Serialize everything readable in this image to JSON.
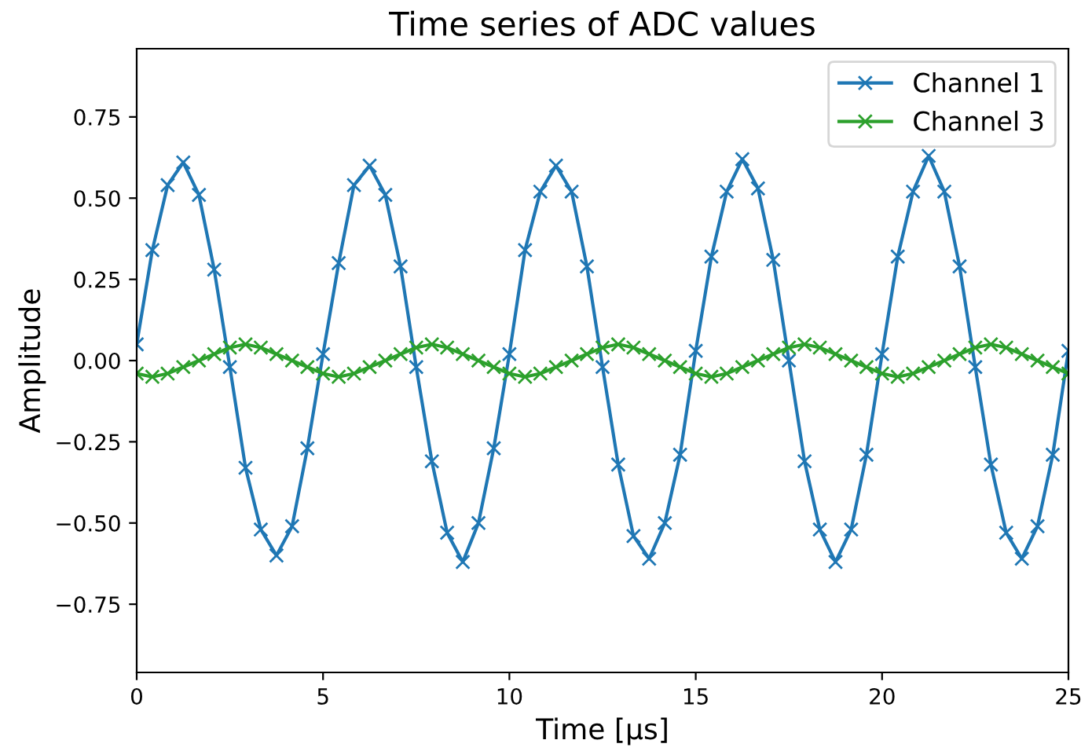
{
  "chart_data": {
    "type": "line",
    "title": "Time series of ADC values",
    "xlabel": "Time [μs]",
    "ylabel": "Amplitude",
    "x": [
      0,
      0.42,
      0.83,
      1.25,
      1.67,
      2.08,
      2.5,
      2.92,
      3.33,
      3.75,
      4.17,
      4.58,
      5,
      5.42,
      5.83,
      6.25,
      6.67,
      7.08,
      7.5,
      7.92,
      8.33,
      8.75,
      9.17,
      9.58,
      10,
      10.42,
      10.83,
      11.25,
      11.67,
      12.08,
      12.5,
      12.92,
      13.33,
      13.75,
      14.17,
      14.58,
      15,
      15.42,
      15.83,
      16.25,
      16.67,
      17.08,
      17.5,
      17.92,
      18.33,
      18.75,
      19.17,
      19.58,
      20,
      20.42,
      20.83,
      21.25,
      21.67,
      22.08,
      22.5,
      22.92,
      23.33,
      23.75,
      24.17,
      24.58,
      25
    ],
    "series": [
      {
        "name": "Channel 1",
        "color": "#1f77b4",
        "values": [
          0.05,
          0.34,
          0.54,
          0.61,
          0.51,
          0.28,
          -0.02,
          -0.33,
          -0.52,
          -0.6,
          -0.51,
          -0.27,
          0.02,
          0.3,
          0.54,
          0.6,
          0.51,
          0.29,
          -0.02,
          -0.31,
          -0.53,
          -0.62,
          -0.5,
          -0.27,
          0.02,
          0.34,
          0.52,
          0.6,
          0.52,
          0.29,
          -0.02,
          -0.32,
          -0.54,
          -0.61,
          -0.5,
          -0.29,
          0.03,
          0.32,
          0.52,
          0.62,
          0.53,
          0.31,
          0.0,
          -0.31,
          -0.52,
          -0.62,
          -0.52,
          -0.29,
          0.02,
          0.32,
          0.52,
          0.63,
          0.52,
          0.29,
          -0.02,
          -0.32,
          -0.53,
          -0.61,
          -0.51,
          -0.29,
          0.03
        ]
      },
      {
        "name": "Channel 3",
        "color": "#2ca02c",
        "values": [
          -0.04,
          -0.05,
          -0.04,
          -0.02,
          0.0,
          0.02,
          0.04,
          0.05,
          0.04,
          0.02,
          0.0,
          -0.02,
          -0.04,
          -0.05,
          -0.04,
          -0.02,
          0.0,
          0.02,
          0.04,
          0.05,
          0.04,
          0.02,
          0.0,
          -0.02,
          -0.04,
          -0.05,
          -0.04,
          -0.02,
          0.0,
          0.02,
          0.04,
          0.05,
          0.04,
          0.02,
          0.0,
          -0.02,
          -0.04,
          -0.05,
          -0.04,
          -0.02,
          0.0,
          0.02,
          0.04,
          0.05,
          0.04,
          0.02,
          0.0,
          -0.02,
          -0.04,
          -0.05,
          -0.04,
          -0.02,
          0.0,
          0.02,
          0.04,
          0.05,
          0.04,
          0.02,
          0.0,
          -0.02,
          -0.04
        ]
      }
    ],
    "xlim": [
      0,
      25
    ],
    "xticks": [
      0,
      5,
      10,
      15,
      20,
      25
    ],
    "ylim": [
      -0.96,
      0.96
    ],
    "yticks": [
      {
        "value": -0.75,
        "label": "−0.75"
      },
      {
        "value": -0.5,
        "label": "−0.50"
      },
      {
        "value": -0.25,
        "label": "−0.25"
      },
      {
        "value": 0,
        "label": "0.00"
      },
      {
        "value": 0.25,
        "label": "0.25"
      },
      {
        "value": 0.5,
        "label": "0.50"
      },
      {
        "value": 0.75,
        "label": "0.75"
      }
    ],
    "marker": "cross",
    "line_style": "solid",
    "legend": "top right",
    "grid": false
  }
}
